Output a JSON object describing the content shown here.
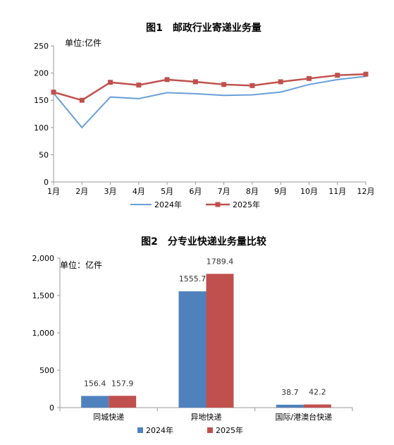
{
  "chart_data": [
    {
      "type": "line",
      "title": "图1　邮政行业寄递业务量",
      "unit_label": "单位:亿件",
      "categories": [
        "1月",
        "2月",
        "3月",
        "4月",
        "5月",
        "6月",
        "7月",
        "8月",
        "9月",
        "10月",
        "11月",
        "12月"
      ],
      "ylim": [
        0,
        250
      ],
      "yticks": [
        0,
        50,
        100,
        150,
        200,
        250
      ],
      "series": [
        {
          "name": "2024年",
          "color": "#6a9fd8",
          "values": [
            163,
            100,
            156,
            153,
            164,
            162,
            159,
            160,
            165,
            179,
            188,
            194
          ]
        },
        {
          "name": "2025年",
          "color": "#c0504d",
          "values": [
            165,
            150,
            183,
            178,
            188,
            184,
            179,
            177,
            184,
            190,
            196,
            198
          ]
        }
      ],
      "legend": "bottom"
    },
    {
      "type": "bar",
      "title": "图2　分专业快递业务量比较",
      "unit_label": "单位：亿件",
      "categories": [
        "同城快递",
        "异地快递",
        "国际/港澳台快递"
      ],
      "ylim": [
        0,
        2000
      ],
      "yticks": [
        "0",
        "500",
        "1,000",
        "1,500",
        "2,000"
      ],
      "ytick_values": [
        0,
        500,
        1000,
        1500,
        2000
      ],
      "series": [
        {
          "name": "2024年",
          "color": "#4f81bd",
          "values": [
            156.4,
            1555.7,
            38.7
          ],
          "labels": [
            "156.4",
            "1555.7",
            "38.7"
          ]
        },
        {
          "name": "2025年",
          "color": "#c0504d",
          "values": [
            157.9,
            1789.4,
            42.2
          ],
          "labels": [
            "157.9",
            "1789.4",
            "42.2"
          ]
        }
      ],
      "legend": "bottom"
    }
  ]
}
